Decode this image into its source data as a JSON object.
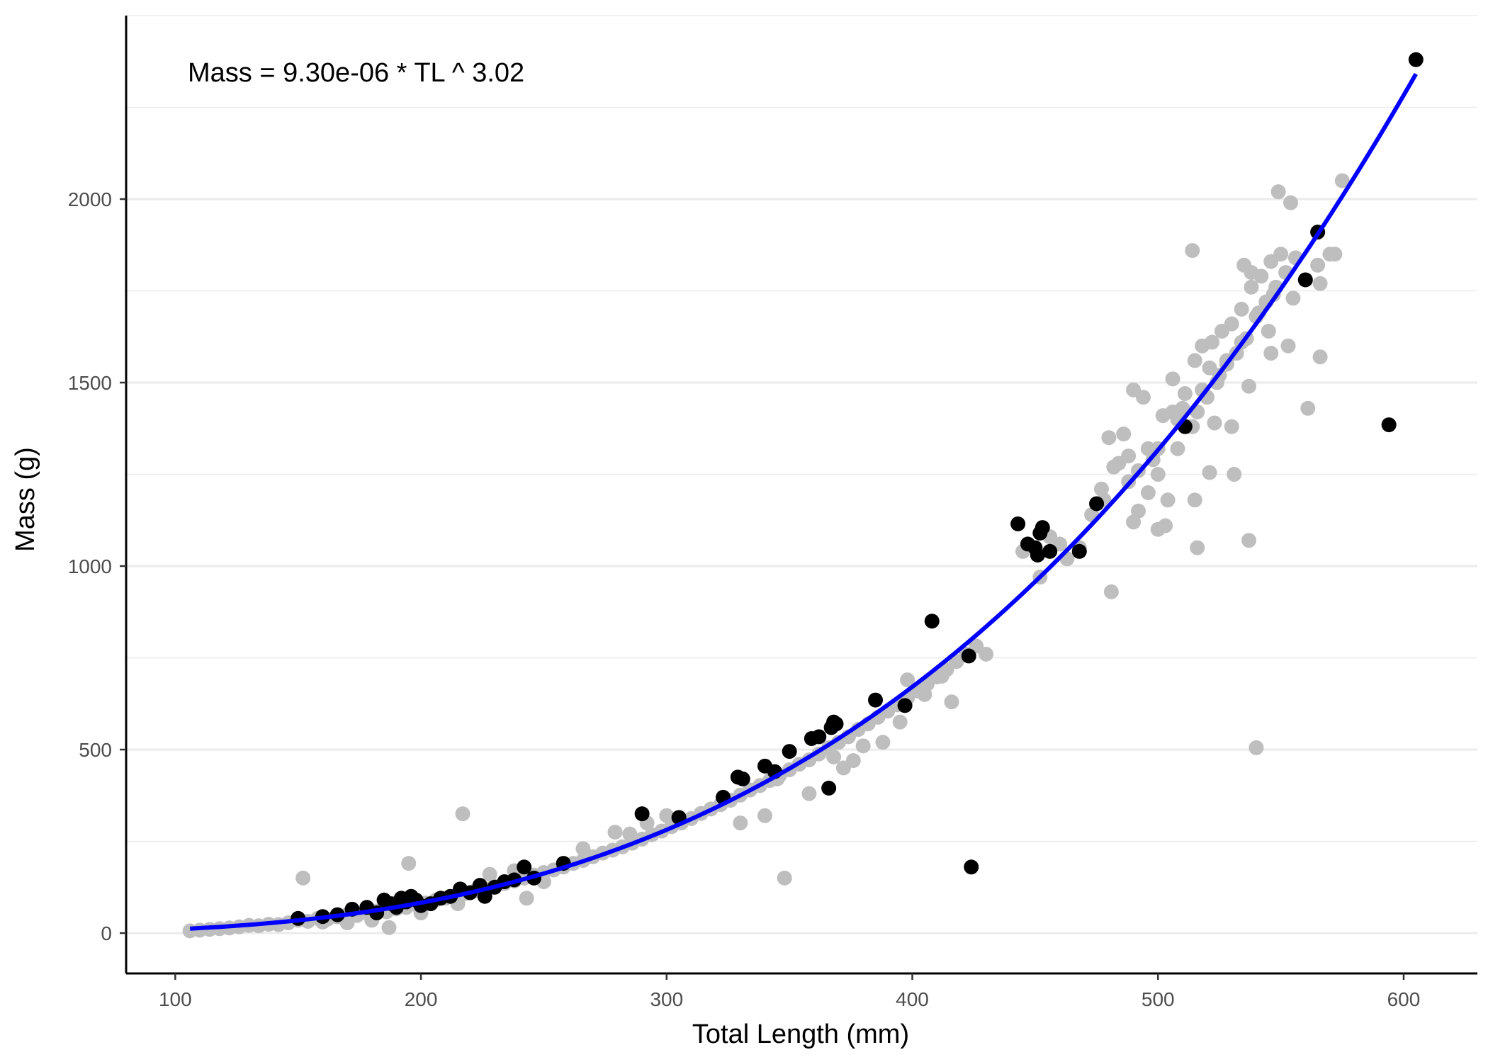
{
  "chart_data": {
    "type": "scatter",
    "title": "",
    "annotation": "Mass = 9.30e-06 * TL ^ 3.02",
    "xlabel": "Total Length (mm)",
    "ylabel": "Mass (g)",
    "xlim": [
      80,
      630
    ],
    "ylim": [
      -110,
      2500
    ],
    "x_ticks": [
      100,
      200,
      300,
      400,
      500,
      600
    ],
    "y_ticks": [
      0,
      500,
      1000,
      1500,
      2000
    ],
    "x_tick_labels": [
      "100",
      "200",
      "300",
      "400",
      "500",
      "600"
    ],
    "y_tick_labels": [
      "0",
      "500",
      "1000",
      "1500",
      "2000"
    ],
    "grid": "horizontal major and minor",
    "fit": {
      "a": 9.3e-06,
      "b": 3.02,
      "x_range": [
        106,
        605
      ],
      "color": "#0000ff"
    },
    "colors": {
      "group_black": "#000000",
      "group_grey": "#bebebe",
      "fit_line": "#0000ff",
      "grid": "#ebebeb"
    },
    "series": [
      {
        "color": "#bebebe",
        "points": [
          [
            106,
            6
          ],
          [
            110,
            8
          ],
          [
            114,
            10
          ],
          [
            118,
            12
          ],
          [
            122,
            14
          ],
          [
            126,
            17
          ],
          [
            130,
            21
          ],
          [
            134,
            20
          ],
          [
            138,
            24
          ],
          [
            142,
            23
          ],
          [
            146,
            28
          ],
          [
            150,
            35
          ],
          [
            154,
            32
          ],
          [
            158,
            40
          ],
          [
            162,
            38
          ],
          [
            166,
            44
          ],
          [
            170,
            50
          ],
          [
            174,
            48
          ],
          [
            178,
            55
          ],
          [
            182,
            60
          ],
          [
            186,
            58
          ],
          [
            190,
            66
          ],
          [
            194,
            70
          ],
          [
            198,
            78
          ],
          [
            202,
            82
          ],
          [
            206,
            90
          ],
          [
            210,
            95
          ],
          [
            214,
            100
          ],
          [
            218,
            108
          ],
          [
            222,
            115
          ],
          [
            226,
            120
          ],
          [
            230,
            128
          ],
          [
            234,
            135
          ],
          [
            238,
            142
          ],
          [
            242,
            150
          ],
          [
            246,
            158
          ],
          [
            250,
            165
          ],
          [
            254,
            172
          ],
          [
            258,
            180
          ],
          [
            262,
            190
          ],
          [
            266,
            198
          ],
          [
            270,
            208
          ],
          [
            274,
            218
          ],
          [
            278,
            226
          ],
          [
            282,
            235
          ],
          [
            286,
            245
          ],
          [
            290,
            256
          ],
          [
            294,
            268
          ],
          [
            298,
            278
          ],
          [
            302,
            290
          ],
          [
            306,
            300
          ],
          [
            310,
            312
          ],
          [
            314,
            326
          ],
          [
            318,
            338
          ],
          [
            322,
            350
          ],
          [
            326,
            362
          ],
          [
            330,
            376
          ],
          [
            334,
            390
          ],
          [
            338,
            402
          ],
          [
            342,
            416
          ],
          [
            346,
            430
          ],
          [
            350,
            445
          ],
          [
            354,
            460
          ],
          [
            358,
            472
          ],
          [
            362,
            488
          ],
          [
            366,
            505
          ],
          [
            370,
            520
          ],
          [
            374,
            535
          ],
          [
            378,
            555
          ],
          [
            382,
            570
          ],
          [
            386,
            588
          ],
          [
            390,
            605
          ],
          [
            394,
            622
          ],
          [
            398,
            640
          ],
          [
            402,
            660
          ],
          [
            406,
            678
          ],
          [
            410,
            698
          ],
          [
            414,
            718
          ],
          [
            418,
            740
          ],
          [
            422,
            760
          ],
          [
            426,
            782
          ],
          [
            430,
            760
          ],
          [
            152,
            150
          ],
          [
            195,
            190
          ],
          [
            217,
            325
          ],
          [
            243,
            95
          ],
          [
            187,
            15
          ],
          [
            279,
            275
          ],
          [
            348,
            150
          ],
          [
            358,
            380
          ],
          [
            330,
            300
          ],
          [
            345,
            420
          ],
          [
            372,
            450
          ],
          [
            388,
            520
          ],
          [
            395,
            575
          ],
          [
            405,
            650
          ],
          [
            416,
            630
          ],
          [
            412,
            700
          ],
          [
            398,
            690
          ],
          [
            380,
            510
          ],
          [
            376,
            470
          ],
          [
            368,
            480
          ],
          [
            340,
            320
          ],
          [
            300,
            320
          ],
          [
            292,
            300
          ],
          [
            285,
            270
          ],
          [
            266,
            230
          ],
          [
            250,
            140
          ],
          [
            238,
            170
          ],
          [
            228,
            160
          ],
          [
            215,
            80
          ],
          [
            200,
            55
          ],
          [
            180,
            35
          ],
          [
            170,
            28
          ],
          [
            160,
            30
          ],
          [
            480,
            1350
          ],
          [
            484,
            1280
          ],
          [
            488,
            1300
          ],
          [
            492,
            1150
          ],
          [
            496,
            1200
          ],
          [
            500,
            1250
          ],
          [
            504,
            1180
          ],
          [
            508,
            1320
          ],
          [
            512,
            1380
          ],
          [
            516,
            1420
          ],
          [
            520,
            1460
          ],
          [
            524,
            1500
          ],
          [
            528,
            1550
          ],
          [
            532,
            1580
          ],
          [
            536,
            1620
          ],
          [
            540,
            1680
          ],
          [
            544,
            1720
          ],
          [
            548,
            1760
          ],
          [
            552,
            1800
          ],
          [
            556,
            1840
          ],
          [
            560,
            1780
          ],
          [
            565,
            1820
          ],
          [
            570,
            1850
          ],
          [
            575,
            2050
          ],
          [
            482,
            1270
          ],
          [
            486,
            1360
          ],
          [
            490,
            1480
          ],
          [
            494,
            1460
          ],
          [
            498,
            1290
          ],
          [
            502,
            1410
          ],
          [
            506,
            1510
          ],
          [
            510,
            1430
          ],
          [
            514,
            1380
          ],
          [
            518,
            1600
          ],
          [
            522,
            1610
          ],
          [
            526,
            1640
          ],
          [
            530,
            1660
          ],
          [
            534,
            1700
          ],
          [
            538,
            1760
          ],
          [
            542,
            1790
          ],
          [
            546,
            1830
          ],
          [
            550,
            1850
          ],
          [
            554,
            1990
          ],
          [
            549,
            2020
          ],
          [
            514,
            1860
          ],
          [
            516,
            1050
          ],
          [
            537,
            1070
          ],
          [
            540,
            505
          ],
          [
            561,
            1430
          ],
          [
            566,
            1570
          ],
          [
            553,
            1600
          ],
          [
            546,
            1580
          ],
          [
            537,
            1490
          ],
          [
            530,
            1380
          ],
          [
            531,
            1250
          ],
          [
            523,
            1390
          ],
          [
            521,
            1255
          ],
          [
            515,
            1180
          ],
          [
            503,
            1110
          ],
          [
            500,
            1100
          ],
          [
            490,
            1120
          ],
          [
            481,
            930
          ],
          [
            478,
            1180
          ],
          [
            477,
            1210
          ],
          [
            473,
            1140
          ],
          [
            468,
            1050
          ],
          [
            460,
            1060
          ],
          [
            452,
            970
          ],
          [
            445,
            1040
          ],
          [
            456,
            1080
          ],
          [
            463,
            1020
          ],
          [
            500,
            1320
          ],
          [
            506,
            1420
          ],
          [
            511,
            1470
          ],
          [
            518,
            1480
          ],
          [
            525,
            1520
          ],
          [
            534,
            1610
          ],
          [
            541,
            1690
          ],
          [
            547,
            1740
          ],
          [
            555,
            1730
          ],
          [
            566,
            1770
          ],
          [
            572,
            1850
          ],
          [
            535,
            1820
          ],
          [
            538,
            1800
          ],
          [
            545,
            1640
          ],
          [
            528,
            1560
          ],
          [
            521,
            1540
          ],
          [
            515,
            1560
          ],
          [
            508,
            1400
          ],
          [
            496,
            1320
          ],
          [
            492,
            1260
          ],
          [
            488,
            1230
          ]
        ]
      },
      {
        "color": "#000000",
        "points": [
          [
            150,
            40
          ],
          [
            160,
            45
          ],
          [
            166,
            50
          ],
          [
            172,
            65
          ],
          [
            178,
            70
          ],
          [
            182,
            55
          ],
          [
            185,
            90
          ],
          [
            188,
            80
          ],
          [
            190,
            70
          ],
          [
            192,
            95
          ],
          [
            194,
            85
          ],
          [
            196,
            100
          ],
          [
            198,
            90
          ],
          [
            200,
            75
          ],
          [
            204,
            80
          ],
          [
            208,
            95
          ],
          [
            212,
            100
          ],
          [
            216,
            120
          ],
          [
            220,
            110
          ],
          [
            224,
            130
          ],
          [
            226,
            100
          ],
          [
            230,
            125
          ],
          [
            234,
            140
          ],
          [
            238,
            145
          ],
          [
            242,
            180
          ],
          [
            246,
            150
          ],
          [
            258,
            190
          ],
          [
            290,
            325
          ],
          [
            305,
            315
          ],
          [
            323,
            370
          ],
          [
            329,
            425
          ],
          [
            331,
            420
          ],
          [
            340,
            455
          ],
          [
            344,
            440
          ],
          [
            350,
            495
          ],
          [
            359,
            530
          ],
          [
            362,
            535
          ],
          [
            366,
            395
          ],
          [
            367,
            560
          ],
          [
            368,
            575
          ],
          [
            369,
            570
          ],
          [
            385,
            635
          ],
          [
            397,
            620
          ],
          [
            408,
            850
          ],
          [
            423,
            755
          ],
          [
            424,
            180
          ],
          [
            443,
            1115
          ],
          [
            447,
            1060
          ],
          [
            450,
            1050
          ],
          [
            451,
            1030
          ],
          [
            452,
            1090
          ],
          [
            453,
            1105
          ],
          [
            456,
            1040
          ],
          [
            468,
            1040
          ],
          [
            475,
            1170
          ],
          [
            511,
            1380
          ],
          [
            560,
            1780
          ],
          [
            565,
            1910
          ],
          [
            594,
            1385
          ],
          [
            605,
            2380
          ]
        ]
      }
    ]
  }
}
